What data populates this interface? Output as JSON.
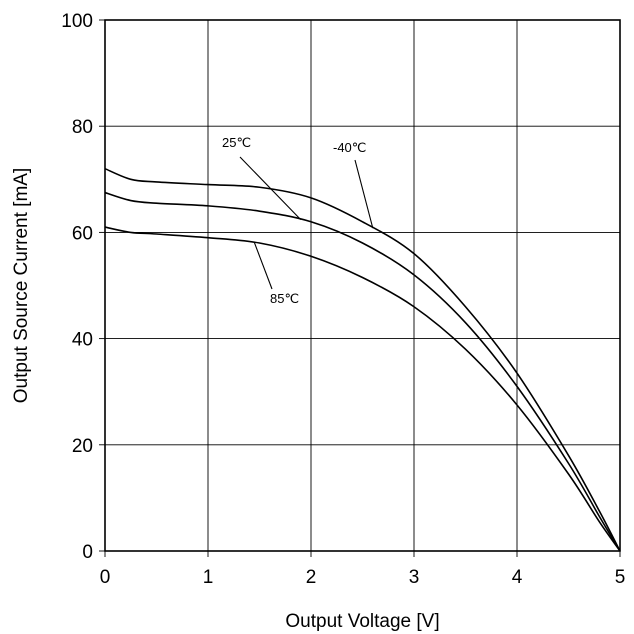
{
  "chart_data": {
    "type": "line",
    "title": "",
    "xlabel": "Output Voltage [V]",
    "ylabel": "Output Source Current [mA]",
    "xlim": [
      0,
      5
    ],
    "ylim": [
      0,
      100
    ],
    "xticks": [
      0,
      1,
      2,
      3,
      4,
      5
    ],
    "yticks": [
      0,
      20,
      40,
      60,
      80,
      100
    ],
    "xtick_labels": [
      "0",
      "1",
      "2",
      "3",
      "4",
      "5"
    ],
    "ytick_labels": [
      "0",
      "20",
      "40",
      "60",
      "80",
      "100"
    ],
    "grid": true,
    "legend": "none",
    "series": [
      {
        "name": "-40℃",
        "x": [
          0,
          0.25,
          0.5,
          1.0,
          1.5,
          2.0,
          2.5,
          3.0,
          3.5,
          4.0,
          4.5,
          4.8,
          5.0
        ],
        "values": [
          72,
          70,
          69.5,
          69,
          68.5,
          66.5,
          62,
          56,
          46,
          33.5,
          18,
          7.5,
          0
        ]
      },
      {
        "name": "25℃",
        "x": [
          0,
          0.25,
          0.5,
          1.0,
          1.5,
          2.0,
          2.5,
          3.0,
          3.5,
          4.0,
          4.5,
          4.8,
          5.0
        ],
        "values": [
          67.5,
          66,
          65.5,
          65,
          64,
          62,
          58,
          52,
          43,
          31,
          16.5,
          6.5,
          0
        ]
      },
      {
        "name": "85℃",
        "x": [
          0,
          0.25,
          0.5,
          1.0,
          1.5,
          2.0,
          2.5,
          3.0,
          3.5,
          4.0,
          4.5,
          4.8,
          5.0
        ],
        "values": [
          61,
          60,
          59.7,
          59,
          58,
          55.5,
          51.5,
          46,
          38,
          27.5,
          14.5,
          5.5,
          0
        ]
      }
    ],
    "annotations": [
      {
        "text": "25℃",
        "series": "25℃",
        "at_x": 1.9
      },
      {
        "text": "-40℃",
        "series": "-40℃",
        "at_x": 2.6
      },
      {
        "text": "85℃",
        "series": "85℃",
        "at_x": 1.45
      }
    ]
  }
}
